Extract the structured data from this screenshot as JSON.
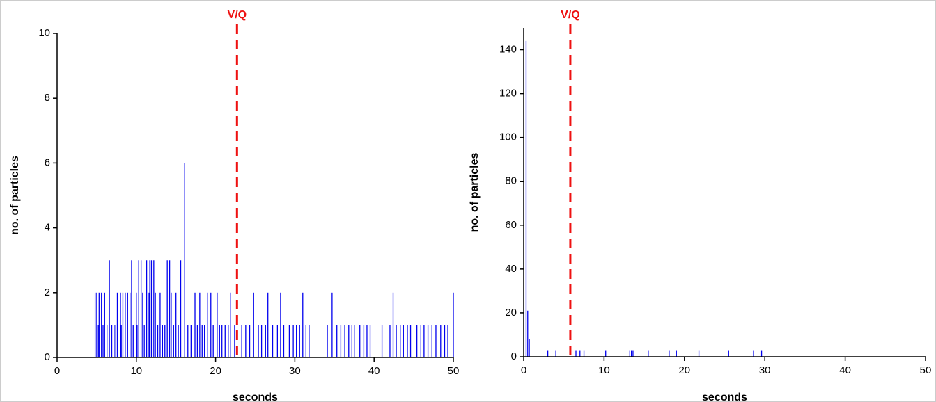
{
  "chart_data": [
    {
      "type": "spike",
      "xlabel": "seconds",
      "ylabel": "no. of particles",
      "color": "#0000ee",
      "xlim": [
        0,
        50
      ],
      "ylim": [
        0,
        10
      ],
      "xticks": [
        0,
        10,
        20,
        30,
        40,
        50
      ],
      "yticks": [
        0,
        2,
        4,
        6,
        8,
        10
      ],
      "annotation": {
        "text": "V/Q",
        "x": 22.7,
        "color": "#ee1111"
      },
      "x": [
        4.8,
        5.0,
        5.3,
        5.6,
        6.0,
        7.6,
        8.0,
        8.3,
        8.6,
        8.9,
        9.2,
        10.0,
        10.8,
        11.6,
        12.4,
        13.0,
        14.4,
        15.0,
        17.4,
        18.0,
        19.0,
        19.4,
        20.2,
        21.9,
        24.8,
        26.6,
        28.2,
        31.0,
        34.7,
        42.4,
        50.0,
        6.6,
        9.4,
        10.3,
        10.6,
        11.3,
        11.7,
        11.9,
        12.2,
        13.9,
        14.2,
        15.6,
        16.1,
        5.2,
        5.8,
        6.3,
        6.9,
        7.2,
        7.4,
        8.1,
        9.6,
        10.1,
        11.0,
        12.7,
        13.3,
        13.6,
        14.7,
        15.3,
        16.5,
        16.9,
        17.7,
        18.3,
        18.6,
        19.7,
        20.5,
        20.8,
        21.2,
        21.6,
        22.4,
        23.3,
        23.8,
        24.3,
        25.4,
        25.8,
        26.3,
        27.2,
        27.8,
        28.6,
        29.3,
        29.8,
        30.2,
        30.6,
        31.4,
        31.8,
        34.1,
        35.3,
        35.8,
        36.3,
        36.8,
        37.2,
        37.5,
        38.2,
        38.7,
        39.1,
        39.5,
        41.0,
        42.0,
        42.8,
        43.3,
        43.7,
        44.2,
        44.6,
        45.4,
        45.9,
        46.3,
        46.8,
        47.3,
        47.8,
        48.4,
        48.9,
        49.3
      ],
      "values": [
        2,
        2,
        2,
        2,
        2,
        2,
        2,
        2,
        2,
        2,
        2,
        2,
        2,
        2,
        2,
        2,
        2,
        2,
        2,
        2,
        2,
        2,
        2,
        2,
        2,
        2,
        2,
        2,
        2,
        2,
        2,
        3,
        3,
        3,
        3,
        3,
        3,
        3,
        3,
        3,
        3,
        3,
        6,
        1,
        1,
        1,
        1,
        1,
        1,
        1,
        1,
        1,
        1,
        1,
        1,
        1,
        1,
        1,
        1,
        1,
        1,
        1,
        1,
        1,
        1,
        1,
        1,
        1,
        1,
        1,
        1,
        1,
        1,
        1,
        1,
        1,
        1,
        1,
        1,
        1,
        1,
        1,
        1,
        1,
        1,
        1,
        1,
        1,
        1,
        1,
        1,
        1,
        1,
        1,
        1,
        1,
        1,
        1,
        1,
        1,
        1,
        1,
        1,
        1,
        1,
        1,
        1,
        1,
        1,
        1,
        1
      ]
    },
    {
      "type": "spike",
      "xlabel": "seconds",
      "ylabel": "no. of particles",
      "color": "#0000ee",
      "xlim": [
        0,
        50
      ],
      "ylim": [
        0,
        150
      ],
      "xticks": [
        0,
        10,
        20,
        30,
        40,
        50
      ],
      "yticks": [
        0,
        20,
        40,
        60,
        80,
        100,
        120,
        140
      ],
      "annotation": {
        "text": "V/Q",
        "x": 5.8,
        "color": "#ee1111"
      },
      "x": [
        0.3,
        0.5,
        0.7,
        3.0,
        4.0,
        6.5,
        7.0,
        7.5,
        10.2,
        13.2,
        13.4,
        13.6,
        15.5,
        18.1,
        19.0,
        21.8,
        25.5,
        28.6,
        29.6
      ],
      "values": [
        144,
        21,
        8,
        3,
        3,
        3,
        3,
        3,
        3,
        3,
        3,
        3,
        3,
        3,
        3,
        3,
        3,
        3,
        3
      ]
    }
  ]
}
